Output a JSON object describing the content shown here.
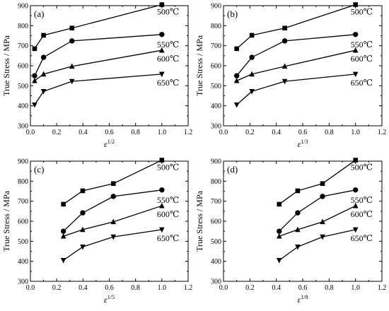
{
  "chart_data": [
    {
      "type": "line",
      "panel_label": "(a)",
      "xlabel_base": "ε",
      "xlabel_exp": "1/2",
      "ylabel": "True Stress / MPa",
      "xlim": [
        0.0,
        1.2
      ],
      "ylim": [
        300,
        900
      ],
      "xticks": [
        "0.0",
        "0.2",
        "0.4",
        "0.6",
        "0.8",
        "1.0",
        "1.2"
      ],
      "yticks": [
        "300",
        "400",
        "500",
        "600",
        "700",
        "800",
        "900"
      ],
      "grid": false,
      "series": [
        {
          "name": "500℃",
          "marker": "square",
          "x": [
            0.032,
            0.1,
            0.316,
            1.0
          ],
          "y": [
            685,
            752,
            788,
            905
          ]
        },
        {
          "name": "550℃",
          "marker": "circle",
          "x": [
            0.032,
            0.1,
            0.316,
            1.0
          ],
          "y": [
            550,
            642,
            724,
            756
          ]
        },
        {
          "name": "600℃",
          "marker": "triangle-up",
          "x": [
            0.032,
            0.1,
            0.316,
            1.0
          ],
          "y": [
            525,
            558,
            597,
            677
          ]
        },
        {
          "name": "650℃",
          "marker": "triangle-down",
          "x": [
            0.032,
            0.1,
            0.316,
            1.0
          ],
          "y": [
            405,
            472,
            522,
            558
          ]
        }
      ]
    },
    {
      "type": "line",
      "panel_label": "(b)",
      "xlabel_base": "ε",
      "xlabel_exp": "1/3",
      "ylabel": "True Stress / MPa",
      "xlim": [
        0.0,
        1.2
      ],
      "ylim": [
        300,
        900
      ],
      "xticks": [
        "0.0",
        "0.2",
        "0.4",
        "0.6",
        "0.8",
        "1.0",
        "1.2"
      ],
      "yticks": [
        "300",
        "400",
        "500",
        "600",
        "700",
        "800",
        "900"
      ],
      "grid": false,
      "series": [
        {
          "name": "500℃",
          "marker": "square",
          "x": [
            0.1,
            0.215,
            0.464,
            1.0
          ],
          "y": [
            685,
            752,
            788,
            905
          ]
        },
        {
          "name": "550℃",
          "marker": "circle",
          "x": [
            0.1,
            0.215,
            0.464,
            1.0
          ],
          "y": [
            550,
            642,
            724,
            756
          ]
        },
        {
          "name": "600℃",
          "marker": "triangle-up",
          "x": [
            0.1,
            0.215,
            0.464,
            1.0
          ],
          "y": [
            525,
            558,
            597,
            677
          ]
        },
        {
          "name": "650℃",
          "marker": "triangle-down",
          "x": [
            0.1,
            0.215,
            0.464,
            1.0
          ],
          "y": [
            405,
            472,
            522,
            558
          ]
        }
      ]
    },
    {
      "type": "line",
      "panel_label": "(c)",
      "xlabel_base": "ε",
      "xlabel_exp": "1/5",
      "ylabel": "True Stress / MPa",
      "xlim": [
        0.0,
        1.2
      ],
      "ylim": [
        300,
        900
      ],
      "xticks": [
        "0.0",
        "0.2",
        "0.4",
        "0.6",
        "0.8",
        "1.0",
        "1.2"
      ],
      "yticks": [
        "300",
        "400",
        "500",
        "600",
        "700",
        "800",
        "900"
      ],
      "grid": false,
      "series": [
        {
          "name": "500℃",
          "marker": "square",
          "x": [
            0.251,
            0.398,
            0.631,
            1.0
          ],
          "y": [
            685,
            752,
            788,
            905
          ]
        },
        {
          "name": "550℃",
          "marker": "circle",
          "x": [
            0.251,
            0.398,
            0.631,
            1.0
          ],
          "y": [
            550,
            642,
            724,
            756
          ]
        },
        {
          "name": "600℃",
          "marker": "triangle-up",
          "x": [
            0.251,
            0.398,
            0.631,
            1.0
          ],
          "y": [
            525,
            558,
            597,
            677
          ]
        },
        {
          "name": "650℃",
          "marker": "triangle-down",
          "x": [
            0.251,
            0.398,
            0.631,
            1.0
          ],
          "y": [
            405,
            472,
            522,
            558
          ]
        }
      ]
    },
    {
      "type": "line",
      "panel_label": "(d)",
      "xlabel_base": "ε",
      "xlabel_exp": "1/8",
      "ylabel": "True Stress / MPa",
      "xlim": [
        0.0,
        1.2
      ],
      "ylim": [
        300,
        900
      ],
      "xticks": [
        "0.0",
        "0.2",
        "0.4",
        "0.6",
        "0.8",
        "1.0",
        "1.2"
      ],
      "yticks": [
        "300",
        "400",
        "500",
        "600",
        "700",
        "800",
        "900"
      ],
      "grid": false,
      "series": [
        {
          "name": "500℃",
          "marker": "square",
          "x": [
            0.422,
            0.562,
            0.75,
            1.0
          ],
          "y": [
            685,
            752,
            788,
            905
          ]
        },
        {
          "name": "550℃",
          "marker": "circle",
          "x": [
            0.422,
            0.562,
            0.75,
            1.0
          ],
          "y": [
            550,
            642,
            724,
            756
          ]
        },
        {
          "name": "600℃",
          "marker": "triangle-up",
          "x": [
            0.422,
            0.562,
            0.75,
            1.0
          ],
          "y": [
            525,
            558,
            597,
            677
          ]
        },
        {
          "name": "650℃",
          "marker": "triangle-down",
          "x": [
            0.422,
            0.562,
            0.75,
            1.0
          ],
          "y": [
            405,
            472,
            522,
            558
          ]
        }
      ]
    }
  ]
}
